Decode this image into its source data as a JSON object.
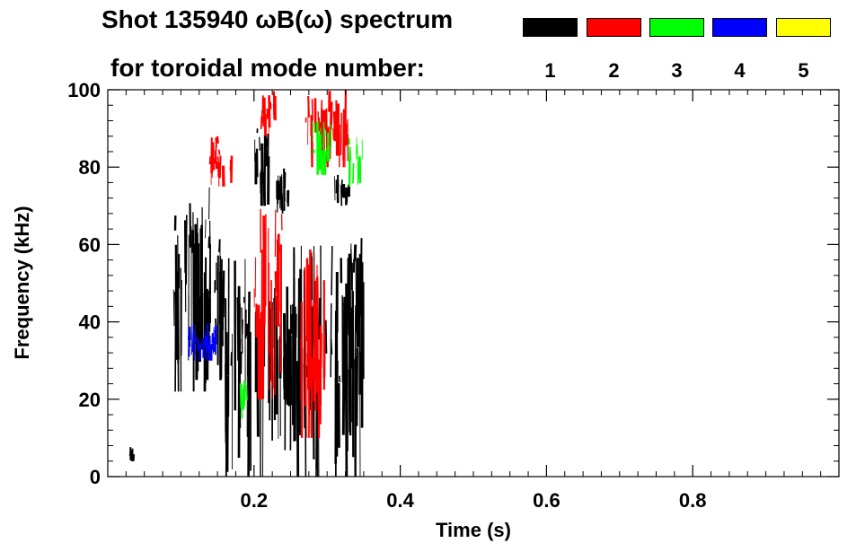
{
  "header": {
    "title_line1": "Shot 135940 ωB(ω) spectrum",
    "title_line2": "for toroidal mode number:"
  },
  "colors": {
    "mode_1": "#000000",
    "mode_2": "#ff0000",
    "mode_3": "#00ff00",
    "mode_4": "#0000ff",
    "mode_5": "#ffff00"
  },
  "chart_data": {
    "type": "heatmap",
    "title": "Shot 135940 ωB(ω) spectrum",
    "subtitle": "for toroidal mode number:",
    "xlabel": "Time (s)",
    "ylabel": "Frequency (kHz)",
    "xlim": [
      0.0,
      1.0
    ],
    "ylim": [
      0,
      100
    ],
    "xticks": [
      0.2,
      0.4,
      0.6,
      0.8
    ],
    "xtick_labels": [
      "0.2",
      "0.4",
      "0.6",
      "0.8"
    ],
    "yticks": [
      0,
      20,
      40,
      60,
      80,
      100
    ],
    "ytick_labels": [
      "0",
      "20",
      "40",
      "60",
      "80",
      "100"
    ],
    "legend_placement": "top-right",
    "legend": [
      {
        "mode": "1",
        "color": "#000000"
      },
      {
        "mode": "2",
        "color": "#ff0000"
      },
      {
        "mode": "3",
        "color": "#00ff00"
      },
      {
        "mode": "4",
        "color": "#0000ff"
      },
      {
        "mode": "5",
        "color": "#ffff00"
      }
    ],
    "grid": false,
    "regions": [
      {
        "mode": 1,
        "t": [
          0.09,
          0.16
        ],
        "f": [
          22,
          68
        ]
      },
      {
        "mode": 1,
        "t": [
          0.11,
          0.14
        ],
        "f": [
          25,
          75
        ]
      },
      {
        "mode": 1,
        "t": [
          0.2,
          0.22
        ],
        "f": [
          70,
          90
        ]
      },
      {
        "mode": 1,
        "t": [
          0.23,
          0.25
        ],
        "f": [
          68,
          80
        ]
      },
      {
        "mode": 1,
        "t": [
          0.33,
          0.35
        ],
        "f": [
          28,
          62
        ]
      },
      {
        "mode": 1,
        "t": [
          0.31,
          0.33
        ],
        "f": [
          70,
          78
        ]
      },
      {
        "mode": 1,
        "t": [
          0.03,
          0.04
        ],
        "f": [
          4,
          8
        ]
      },
      {
        "mode": 1,
        "t": [
          0.16,
          0.35
        ],
        "f": [
          0,
          60
        ]
      },
      {
        "mode": 2,
        "t": [
          0.21,
          0.23
        ],
        "f": [
          88,
          100
        ]
      },
      {
        "mode": 2,
        "t": [
          0.2,
          0.24
        ],
        "f": [
          20,
          70
        ]
      },
      {
        "mode": 2,
        "t": [
          0.26,
          0.3
        ],
        "f": [
          10,
          60
        ]
      },
      {
        "mode": 2,
        "t": [
          0.14,
          0.17
        ],
        "f": [
          75,
          88
        ]
      },
      {
        "mode": 2,
        "t": [
          0.27,
          0.33
        ],
        "f": [
          80,
          100
        ]
      },
      {
        "mode": 3,
        "t": [
          0.28,
          0.31
        ],
        "f": [
          78,
          92
        ]
      },
      {
        "mode": 3,
        "t": [
          0.33,
          0.35
        ],
        "f": [
          75,
          88
        ]
      },
      {
        "mode": 3,
        "t": [
          0.18,
          0.19
        ],
        "f": [
          15,
          25
        ]
      },
      {
        "mode": 4,
        "t": [
          0.11,
          0.15
        ],
        "f": [
          30,
          40
        ]
      }
    ]
  }
}
